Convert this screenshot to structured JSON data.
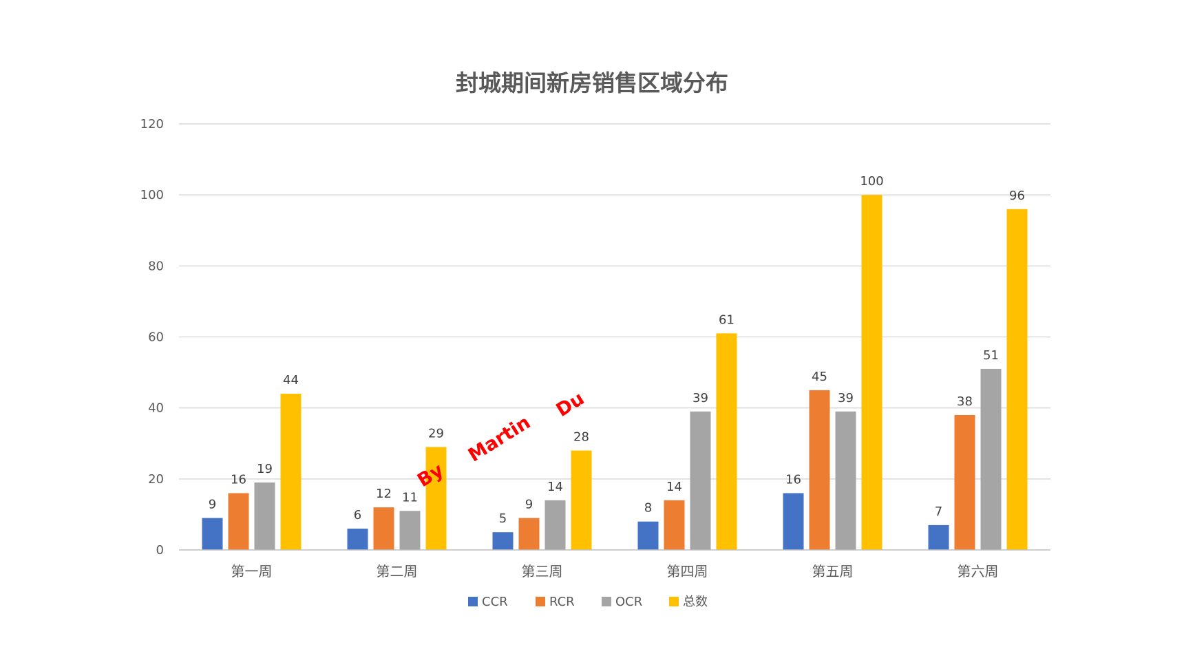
{
  "chart_data": {
    "type": "bar",
    "title": "封城期间新房销售区域分布",
    "xlabel": "",
    "ylabel": "",
    "ylim": [
      0,
      120
    ],
    "yticks": [
      0,
      20,
      40,
      60,
      80,
      100,
      120
    ],
    "grid": true,
    "legend_position": "bottom",
    "categories": [
      "第一周",
      "第二周",
      "第三周",
      "第四周",
      "第五周",
      "第六周"
    ],
    "series": [
      {
        "name": "CCR",
        "color": "#4472c4",
        "values": [
          9,
          6,
          5,
          8,
          16,
          7
        ]
      },
      {
        "name": "RCR",
        "color": "#ed7d31",
        "values": [
          16,
          12,
          9,
          14,
          45,
          38
        ]
      },
      {
        "name": "OCR",
        "color": "#a5a5a5",
        "values": [
          19,
          11,
          14,
          39,
          39,
          51
        ]
      },
      {
        "name": "总数",
        "color": "#ffc000",
        "values": [
          44,
          29,
          28,
          61,
          100,
          96
        ]
      }
    ],
    "watermark": [
      "By",
      "Martin",
      "Du"
    ]
  }
}
